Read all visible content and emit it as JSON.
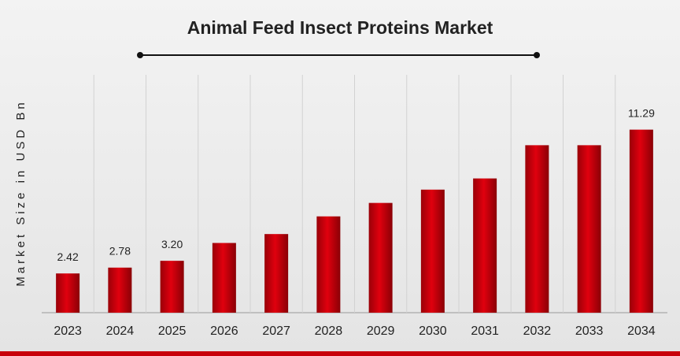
{
  "chart_data": {
    "type": "bar",
    "title": "Animal Feed Insect Proteins Market",
    "y_label": "Market Size in USD Bn",
    "categories": [
      "2023",
      "2024",
      "2025",
      "2026",
      "2027",
      "2028",
      "2029",
      "2030",
      "2031",
      "2032",
      "2033",
      "2034"
    ],
    "values": [
      2.42,
      2.78,
      3.2,
      4.3,
      4.85,
      5.94,
      6.77,
      7.59,
      8.28,
      10.33,
      10.33,
      11.29
    ],
    "value_labels": [
      "2.42",
      "2.78",
      "3.20",
      null,
      null,
      null,
      null,
      null,
      null,
      null,
      null,
      "11.29"
    ],
    "color": "#c8000a",
    "ylim": [
      0,
      12
    ]
  }
}
